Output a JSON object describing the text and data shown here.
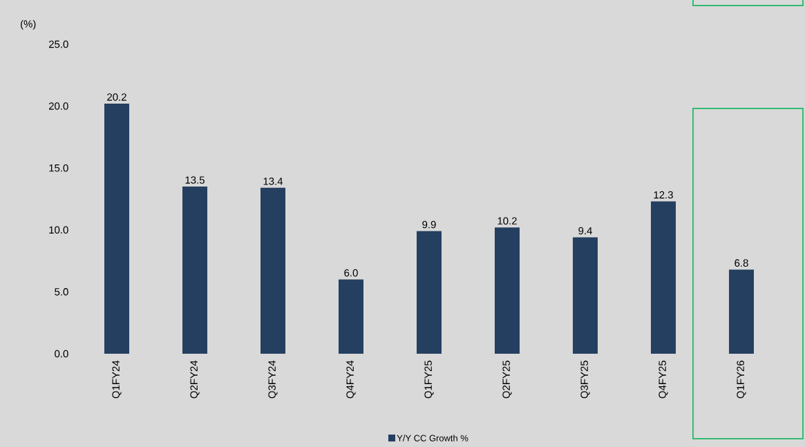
{
  "chart_data": {
    "type": "bar",
    "ylabel": "(%)",
    "categories": [
      "Q1FY24",
      "Q2FY24",
      "Q3FY24",
      "Q4FY24",
      "Q1FY25",
      "Q2FY25",
      "Q3FY25",
      "Q4FY25",
      "Q1FY26"
    ],
    "series": [
      {
        "name": "Y/Y CC Growth %",
        "color": "#243f60",
        "values": [
          20.2,
          13.5,
          13.4,
          6.0,
          9.9,
          10.2,
          9.4,
          12.3,
          6.8
        ],
        "value_labels": [
          "20.2",
          "13.5",
          "13.4",
          "6.0",
          "9.9",
          "10.2",
          "9.4",
          "12.3",
          "6.8"
        ]
      }
    ],
    "ylim": [
      0,
      25
    ],
    "yticks": [
      {
        "value": 0,
        "label": "0.0"
      },
      {
        "value": 5,
        "label": "5.0"
      },
      {
        "value": 10,
        "label": "10.0"
      },
      {
        "value": 15,
        "label": "15.0"
      },
      {
        "value": 20,
        "label": "20.0"
      },
      {
        "value": 25,
        "label": "25.0"
      }
    ],
    "grid": false,
    "legend": "bottom"
  }
}
